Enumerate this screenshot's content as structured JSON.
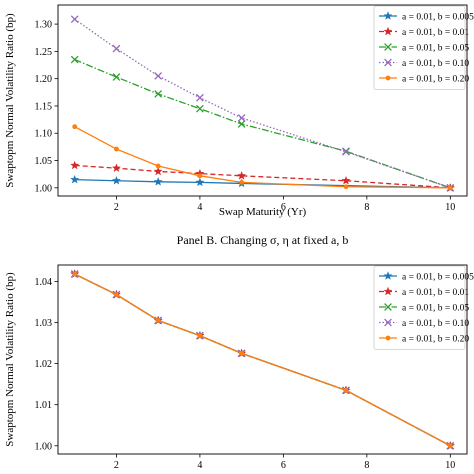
{
  "chart_data": [
    {
      "type": "line",
      "title": "",
      "xlabel": "Swap Maturity (Yr)",
      "ylabel": "Swaptopm Normal Volatility Ratio (bp)",
      "xlim": [
        0.6,
        10.4
      ],
      "ylim": [
        0.985,
        1.335
      ],
      "xticks": [
        2,
        4,
        6,
        8,
        10
      ],
      "yticks": [
        1.0,
        1.05,
        1.1,
        1.15,
        1.2,
        1.25,
        1.3
      ],
      "ytick_labels": [
        "1.00",
        "1.05",
        "1.10",
        "1.15",
        "1.20",
        "1.25",
        "1.30"
      ],
      "legend_position": "top-right",
      "series": [
        {
          "name": "a = 0.01, b = 0.005",
          "color": "#1f77b4",
          "linestyle": "solid",
          "marker": "star",
          "x": [
            1,
            2,
            3,
            4,
            5,
            10
          ],
          "values": [
            1.015,
            1.013,
            1.011,
            1.01,
            1.008,
            1.0
          ]
        },
        {
          "name": "a = 0.01, b = 0.01",
          "color": "#d62728",
          "linestyle": "dashed",
          "marker": "star",
          "x": [
            1,
            2,
            3,
            4,
            5,
            7.5,
            10
          ],
          "values": [
            1.041,
            1.036,
            1.03,
            1.026,
            1.022,
            1.013,
            1.0
          ]
        },
        {
          "name": "a = 0.01, b = 0.05",
          "color": "#2ca02c",
          "linestyle": "dashdot",
          "marker": "x",
          "x": [
            1,
            2,
            3,
            4,
            5,
            7.5,
            10
          ],
          "values": [
            1.235,
            1.203,
            1.172,
            1.145,
            1.117,
            1.067,
            1.0
          ]
        },
        {
          "name": "a = 0.01, b = 0.10",
          "color": "#9467bd",
          "linestyle": "dotted",
          "marker": "x",
          "x": [
            1,
            2,
            3,
            4,
            5,
            7.5,
            10
          ],
          "values": [
            1.309,
            1.255,
            1.205,
            1.165,
            1.128,
            1.066,
            1.0
          ]
        },
        {
          "name": "a = 0.01, b = 0.20",
          "color": "#ff7f0e",
          "linestyle": "solid",
          "marker": "dot",
          "x": [
            1,
            2,
            3,
            4,
            5,
            7.5,
            10
          ],
          "values": [
            1.112,
            1.071,
            1.04,
            1.022,
            1.01,
            1.002,
            1.0
          ]
        }
      ]
    },
    {
      "type": "line",
      "title": "Panel B. Changing σ, η at fixed a, b",
      "xlabel": "",
      "ylabel": "Swaptopm Normal Volatility Ratio (bp)",
      "xlim": [
        0.6,
        10.4
      ],
      "ylim": [
        0.998,
        1.044
      ],
      "xticks": [
        2,
        4,
        6,
        8,
        10
      ],
      "yticks": [
        1.0,
        1.01,
        1.02,
        1.03,
        1.04
      ],
      "ytick_labels": [
        "1.00",
        "1.01",
        "1.02",
        "1.03",
        "1.04"
      ],
      "legend_position": "top-right",
      "series": [
        {
          "name": "a = 0.01, b = 0.005",
          "color": "#1f77b4",
          "linestyle": "solid",
          "marker": "star",
          "x": [
            1,
            2,
            3,
            4,
            5,
            7.5,
            10
          ],
          "values": [
            1.0418,
            1.0368,
            1.0305,
            1.0268,
            1.0225,
            1.0135,
            1.0
          ]
        },
        {
          "name": "a = 0.01, b = 0.01",
          "color": "#d62728",
          "linestyle": "dashed",
          "marker": "star",
          "x": [
            1,
            2,
            3,
            4,
            5,
            7.5,
            10
          ],
          "values": [
            1.0418,
            1.0368,
            1.0305,
            1.0268,
            1.0225,
            1.0135,
            1.0
          ]
        },
        {
          "name": "a = 0.01, b = 0.05",
          "color": "#2ca02c",
          "linestyle": "dashdot",
          "marker": "x",
          "x": [
            1,
            2,
            3,
            4,
            5,
            7.5,
            10
          ],
          "values": [
            1.0418,
            1.0368,
            1.0305,
            1.0268,
            1.0225,
            1.0135,
            1.0
          ]
        },
        {
          "name": "a = 0.01, b = 0.10",
          "color": "#9467bd",
          "linestyle": "dotted",
          "marker": "x",
          "x": [
            1,
            2,
            3,
            4,
            5,
            7.5,
            10
          ],
          "values": [
            1.0418,
            1.0368,
            1.0305,
            1.0268,
            1.0225,
            1.0135,
            1.0
          ]
        },
        {
          "name": "a = 0.01, b = 0.20",
          "color": "#ff7f0e",
          "linestyle": "solid",
          "marker": "dot",
          "x": [
            1,
            2,
            3,
            4,
            5,
            7.5,
            10
          ],
          "values": [
            1.0418,
            1.0368,
            1.0305,
            1.0268,
            1.0225,
            1.0135,
            1.0
          ]
        }
      ]
    }
  ]
}
